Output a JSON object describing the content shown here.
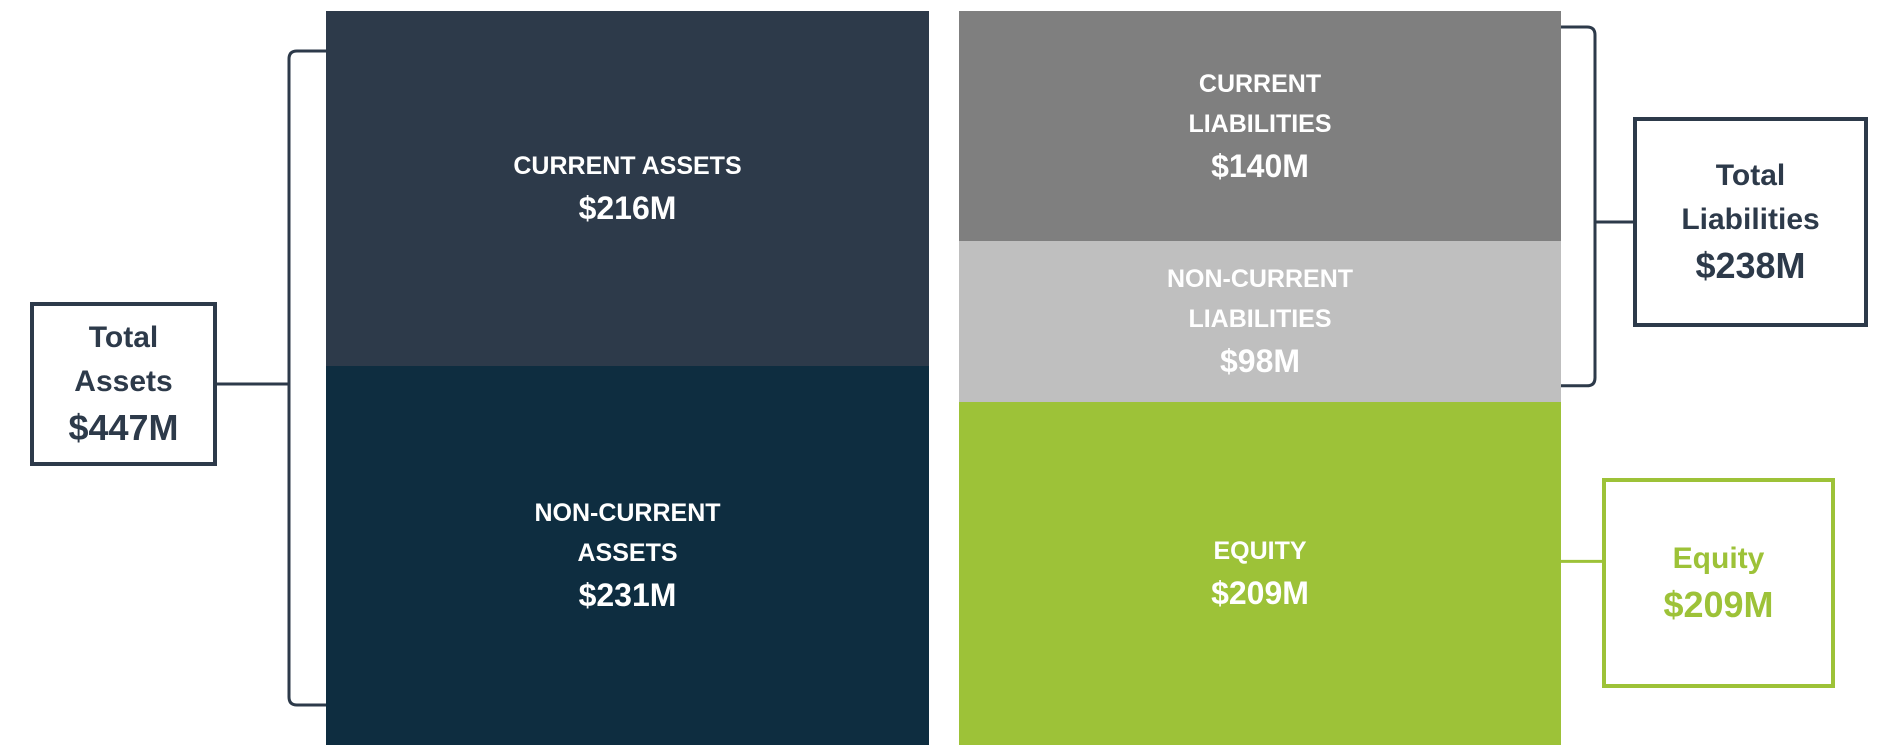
{
  "chart_data": {
    "type": "stacked_bar",
    "ylim": [
      0,
      447
    ],
    "columns": [
      {
        "segments": [
          {
            "name": "CURRENT ASSETS",
            "value": 216,
            "value_label": "$216M",
            "color": "#2d3a4a"
          },
          {
            "name": "NON-CURRENT ASSETS",
            "value": 231,
            "value_label": "$231M",
            "color": "#0e2d40"
          }
        ]
      },
      {
        "segments": [
          {
            "name": "CURRENT LIABILITIES",
            "value": 140,
            "value_label": "$140M",
            "color": "#7f7f7f"
          },
          {
            "name": "NON-CURRENT LIABILITIES",
            "value": 98,
            "value_label": "$98M",
            "color": "#bfbfbf"
          },
          {
            "name": "EQUITY",
            "value": 209,
            "value_label": "$209M",
            "color": "#9dc238"
          }
        ]
      }
    ],
    "totals": [
      {
        "label": "Total Assets",
        "value": 447,
        "value_label": "$447M",
        "color": "#2d3a4a"
      },
      {
        "label": "Total Liabilities",
        "value": 238,
        "value_label": "$238M",
        "color": "#2d3a4a"
      },
      {
        "label": "Equity",
        "value": 209,
        "value_label": "$209M",
        "color": "#9dc238"
      }
    ]
  }
}
